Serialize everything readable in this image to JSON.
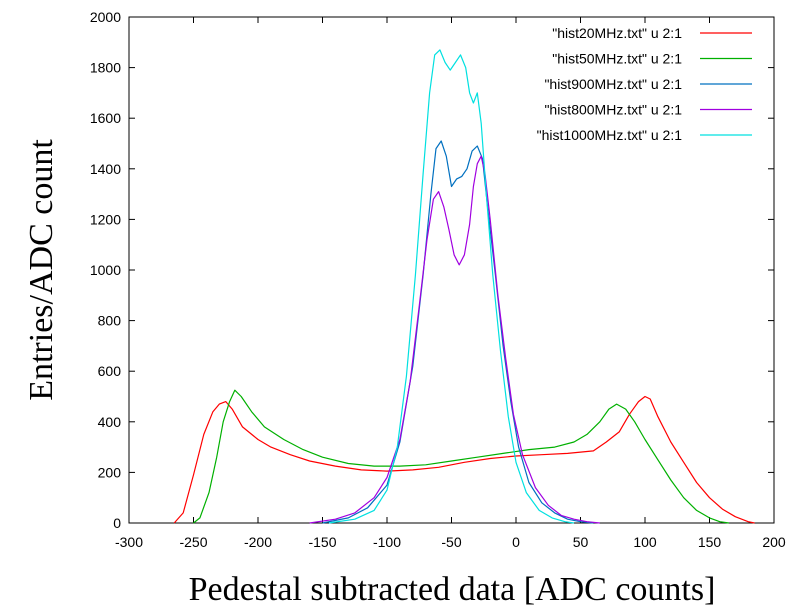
{
  "chart_data": {
    "type": "line",
    "title": "",
    "xlabel": "Pedestal subtracted data [ADC counts]",
    "ylabel": "Entries/ADC count",
    "xlim": [
      -300,
      200
    ],
    "ylim": [
      0,
      2000
    ],
    "xticks": [
      "-300",
      "-250",
      "-200",
      "-150",
      "-100",
      "-50",
      "0",
      "50",
      "100",
      "150",
      "200"
    ],
    "yticks": [
      "0",
      "200",
      "400",
      "600",
      "800",
      "1000",
      "1200",
      "1400",
      "1600",
      "1800",
      "2000"
    ],
    "grid": false,
    "legend_position": "top-right",
    "series": [
      {
        "name": "\"hist20MHz.txt\" u 2:1",
        "color": "#ff0000",
        "points": [
          [
            -265,
            0
          ],
          [
            -258,
            40
          ],
          [
            -250,
            190
          ],
          [
            -242,
            350
          ],
          [
            -235,
            440
          ],
          [
            -230,
            470
          ],
          [
            -225,
            480
          ],
          [
            -220,
            450
          ],
          [
            -212,
            380
          ],
          [
            -200,
            330
          ],
          [
            -190,
            300
          ],
          [
            -175,
            270
          ],
          [
            -160,
            245
          ],
          [
            -140,
            225
          ],
          [
            -120,
            210
          ],
          [
            -100,
            205
          ],
          [
            -80,
            210
          ],
          [
            -60,
            220
          ],
          [
            -40,
            240
          ],
          [
            -20,
            255
          ],
          [
            0,
            265
          ],
          [
            20,
            270
          ],
          [
            40,
            275
          ],
          [
            60,
            285
          ],
          [
            70,
            320
          ],
          [
            80,
            360
          ],
          [
            88,
            430
          ],
          [
            95,
            480
          ],
          [
            100,
            500
          ],
          [
            104,
            490
          ],
          [
            110,
            420
          ],
          [
            120,
            320
          ],
          [
            130,
            240
          ],
          [
            140,
            160
          ],
          [
            150,
            100
          ],
          [
            160,
            55
          ],
          [
            170,
            25
          ],
          [
            180,
            5
          ],
          [
            185,
            0
          ]
        ]
      },
      {
        "name": "\"hist50MHz.txt\" u 2:1",
        "color": "#00b000",
        "points": [
          [
            -250,
            0
          ],
          [
            -245,
            20
          ],
          [
            -238,
            120
          ],
          [
            -232,
            260
          ],
          [
            -227,
            400
          ],
          [
            -222,
            480
          ],
          [
            -218,
            525
          ],
          [
            -213,
            500
          ],
          [
            -205,
            440
          ],
          [
            -195,
            380
          ],
          [
            -180,
            330
          ],
          [
            -165,
            290
          ],
          [
            -150,
            260
          ],
          [
            -130,
            235
          ],
          [
            -110,
            225
          ],
          [
            -90,
            225
          ],
          [
            -70,
            230
          ],
          [
            -50,
            245
          ],
          [
            -30,
            260
          ],
          [
            -10,
            275
          ],
          [
            10,
            290
          ],
          [
            30,
            300
          ],
          [
            45,
            320
          ],
          [
            55,
            350
          ],
          [
            65,
            400
          ],
          [
            72,
            450
          ],
          [
            78,
            470
          ],
          [
            85,
            450
          ],
          [
            92,
            400
          ],
          [
            100,
            330
          ],
          [
            110,
            250
          ],
          [
            120,
            170
          ],
          [
            130,
            100
          ],
          [
            140,
            50
          ],
          [
            150,
            20
          ],
          [
            158,
            5
          ],
          [
            165,
            0
          ]
        ]
      },
      {
        "name": "\"hist900MHz.txt\" u 2:1",
        "color": "#0070c0",
        "points": [
          [
            -150,
            0
          ],
          [
            -130,
            20
          ],
          [
            -115,
            60
          ],
          [
            -100,
            150
          ],
          [
            -90,
            320
          ],
          [
            -80,
            620
          ],
          [
            -72,
            980
          ],
          [
            -66,
            1300
          ],
          [
            -62,
            1480
          ],
          [
            -58,
            1510
          ],
          [
            -54,
            1450
          ],
          [
            -50,
            1330
          ],
          [
            -46,
            1360
          ],
          [
            -42,
            1370
          ],
          [
            -38,
            1400
          ],
          [
            -34,
            1470
          ],
          [
            -30,
            1490
          ],
          [
            -26,
            1440
          ],
          [
            -22,
            1250
          ],
          [
            -16,
            980
          ],
          [
            -10,
            700
          ],
          [
            -4,
            480
          ],
          [
            2,
            300
          ],
          [
            10,
            160
          ],
          [
            20,
            80
          ],
          [
            30,
            40
          ],
          [
            40,
            15
          ],
          [
            50,
            5
          ],
          [
            60,
            0
          ]
        ]
      },
      {
        "name": "\"hist800MHz.txt\" u 2:1",
        "color": "#a000e0",
        "points": [
          [
            -160,
            0
          ],
          [
            -140,
            15
          ],
          [
            -125,
            40
          ],
          [
            -110,
            100
          ],
          [
            -100,
            180
          ],
          [
            -90,
            330
          ],
          [
            -82,
            560
          ],
          [
            -75,
            860
          ],
          [
            -69,
            1120
          ],
          [
            -64,
            1280
          ],
          [
            -60,
            1310
          ],
          [
            -56,
            1250
          ],
          [
            -52,
            1160
          ],
          [
            -48,
            1060
          ],
          [
            -44,
            1020
          ],
          [
            -40,
            1060
          ],
          [
            -36,
            1180
          ],
          [
            -33,
            1330
          ],
          [
            -30,
            1420
          ],
          [
            -27,
            1450
          ],
          [
            -24,
            1380
          ],
          [
            -20,
            1200
          ],
          [
            -14,
            900
          ],
          [
            -8,
            650
          ],
          [
            -2,
            430
          ],
          [
            5,
            270
          ],
          [
            15,
            140
          ],
          [
            25,
            70
          ],
          [
            35,
            30
          ],
          [
            45,
            15
          ],
          [
            55,
            5
          ],
          [
            65,
            0
          ]
        ]
      },
      {
        "name": "\"hist1000MHz.txt\" u 2:1",
        "color": "#00e0e0",
        "points": [
          [
            -145,
            0
          ],
          [
            -125,
            15
          ],
          [
            -110,
            50
          ],
          [
            -100,
            130
          ],
          [
            -92,
            300
          ],
          [
            -85,
            580
          ],
          [
            -78,
            980
          ],
          [
            -72,
            1380
          ],
          [
            -67,
            1700
          ],
          [
            -63,
            1850
          ],
          [
            -59,
            1870
          ],
          [
            -55,
            1820
          ],
          [
            -51,
            1790
          ],
          [
            -47,
            1820
          ],
          [
            -43,
            1850
          ],
          [
            -39,
            1800
          ],
          [
            -36,
            1700
          ],
          [
            -33,
            1660
          ],
          [
            -30,
            1700
          ],
          [
            -27,
            1580
          ],
          [
            -23,
            1300
          ],
          [
            -18,
            980
          ],
          [
            -12,
            680
          ],
          [
            -6,
            420
          ],
          [
            0,
            240
          ],
          [
            8,
            120
          ],
          [
            18,
            50
          ],
          [
            28,
            20
          ],
          [
            38,
            5
          ],
          [
            45,
            0
          ]
        ]
      }
    ]
  }
}
